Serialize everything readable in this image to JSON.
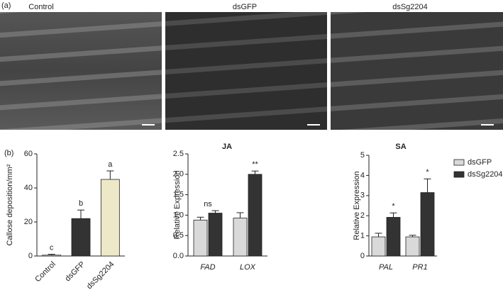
{
  "panel_a": {
    "label": "(a)",
    "images": [
      "Control",
      "dsGFP",
      "dsSg2204"
    ]
  },
  "panel_b_label": "(b)",
  "chart_data": [
    {
      "type": "bar",
      "ylabel": "Callose deposition/mm²",
      "categories": [
        "Control",
        "dsGFP",
        "dsSg2204"
      ],
      "values": [
        0.5,
        22,
        45
      ],
      "errors": [
        0.5,
        5,
        5
      ],
      "colors": [
        "#ffffff",
        "#333333",
        "#ede8c8"
      ],
      "annotations": [
        "c",
        "b",
        "a"
      ],
      "ylim": [
        0,
        60
      ],
      "yticks": [
        0,
        20,
        40,
        60
      ]
    },
    {
      "type": "bar",
      "title": "JA",
      "ylabel": "Relative Expression",
      "categories": [
        "FAD",
        "LOX"
      ],
      "series": [
        {
          "name": "dsGFP",
          "color": "#d9d9d9",
          "values": [
            0.88,
            0.93
          ],
          "errors": [
            0.07,
            0.13
          ]
        },
        {
          "name": "dsSg2204",
          "color": "#333333",
          "values": [
            1.05,
            2.0
          ],
          "errors": [
            0.06,
            0.08
          ]
        }
      ],
      "annotations": [
        "ns",
        "**"
      ],
      "ylim": [
        0,
        2.5
      ],
      "yticks": [
        {
          "value": 0,
          "label": "0.0"
        },
        0.5,
        {
          "value": 1,
          "label": "1.0"
        },
        1.5,
        {
          "value": 2,
          "label": "2.0"
        },
        2.5
      ]
    },
    {
      "type": "bar",
      "title": "SA",
      "ylabel": "Relative Expression",
      "categories": [
        "PAL",
        "PR1"
      ],
      "series": [
        {
          "name": "dsGFP",
          "color": "#d9d9d9",
          "values": [
            0.95,
            0.95
          ],
          "errors": [
            0.18,
            0.08
          ]
        },
        {
          "name": "dsSg2204",
          "color": "#333333",
          "values": [
            1.92,
            3.15
          ],
          "errors": [
            0.22,
            0.68
          ]
        }
      ],
      "annotations": [
        "*",
        "*"
      ],
      "legend": "outside-right",
      "ylim": [
        0,
        5
      ],
      "yticks": [
        0,
        1,
        2,
        3,
        4,
        5
      ]
    }
  ]
}
